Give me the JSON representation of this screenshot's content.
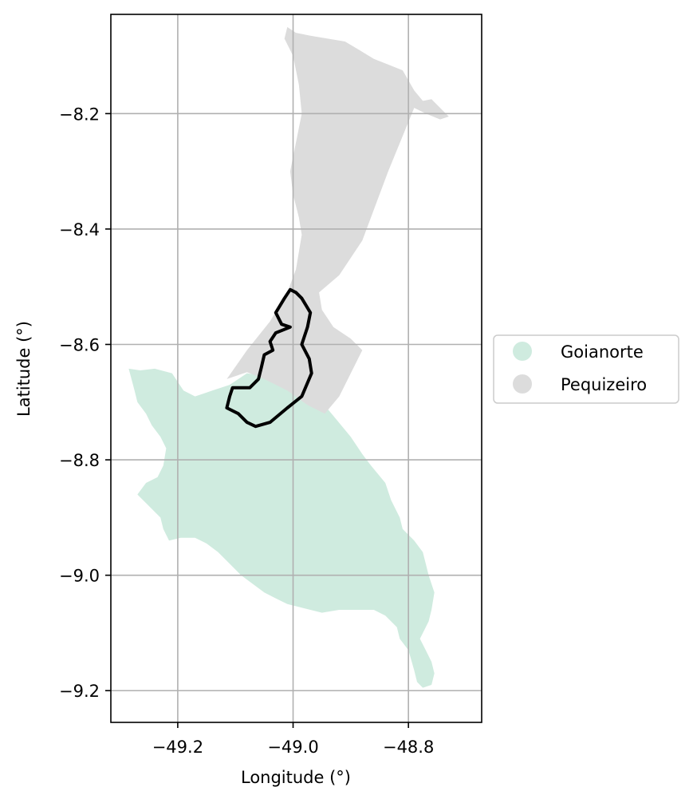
{
  "chart_data": {
    "type": "map",
    "xlabel": "Longitude (°)",
    "ylabel": "Latitude (°)",
    "xlim": [
      -49.316,
      -48.673
    ],
    "ylim": [
      -9.255,
      -8.028
    ],
    "grid": true,
    "x_ticks": [
      {
        "value": -49.2,
        "label": "−49.2"
      },
      {
        "value": -49.0,
        "label": "−49.0"
      },
      {
        "value": -48.8,
        "label": "−48.8"
      }
    ],
    "y_ticks": [
      {
        "value": -8.2,
        "label": "−8.2"
      },
      {
        "value": -8.4,
        "label": "−8.4"
      },
      {
        "value": -8.6,
        "label": "−8.6"
      },
      {
        "value": -8.8,
        "label": "−8.8"
      },
      {
        "value": -9.0,
        "label": "−9.0"
      },
      {
        "value": -9.2,
        "label": "−9.2"
      }
    ],
    "legend_position": "right",
    "regions": [
      {
        "name": "Goianorte",
        "color": "#cfebdf",
        "coords": [
          [
            -49.285,
            -8.642
          ],
          [
            -49.265,
            -8.645
          ],
          [
            -49.24,
            -8.642
          ],
          [
            -49.21,
            -8.65
          ],
          [
            -49.19,
            -8.68
          ],
          [
            -49.17,
            -8.69
          ],
          [
            -49.14,
            -8.68
          ],
          [
            -49.11,
            -8.67
          ],
          [
            -49.08,
            -8.65
          ],
          [
            -49.05,
            -8.655
          ],
          [
            -49.02,
            -8.67
          ],
          [
            -49.0,
            -8.68
          ],
          [
            -48.975,
            -8.69
          ],
          [
            -48.95,
            -8.7
          ],
          [
            -48.925,
            -8.73
          ],
          [
            -48.9,
            -8.76
          ],
          [
            -48.88,
            -8.79
          ],
          [
            -48.865,
            -8.81
          ],
          [
            -48.84,
            -8.84
          ],
          [
            -48.83,
            -8.87
          ],
          [
            -48.815,
            -8.9
          ],
          [
            -48.81,
            -8.92
          ],
          [
            -48.79,
            -8.94
          ],
          [
            -48.775,
            -8.96
          ],
          [
            -48.77,
            -8.98
          ],
          [
            -48.765,
            -9.0
          ],
          [
            -48.755,
            -9.03
          ],
          [
            -48.76,
            -9.06
          ],
          [
            -48.765,
            -9.08
          ],
          [
            -48.78,
            -9.11
          ],
          [
            -48.77,
            -9.13
          ],
          [
            -48.76,
            -9.15
          ],
          [
            -48.755,
            -9.17
          ],
          [
            -48.76,
            -9.19
          ],
          [
            -48.775,
            -9.195
          ],
          [
            -48.785,
            -9.185
          ],
          [
            -48.79,
            -9.165
          ],
          [
            -48.8,
            -9.13
          ],
          [
            -48.815,
            -9.11
          ],
          [
            -48.82,
            -9.09
          ],
          [
            -48.84,
            -9.07
          ],
          [
            -48.86,
            -9.06
          ],
          [
            -48.89,
            -9.06
          ],
          [
            -48.92,
            -9.06
          ],
          [
            -48.95,
            -9.065
          ],
          [
            -48.97,
            -9.06
          ],
          [
            -48.99,
            -9.055
          ],
          [
            -49.01,
            -9.05
          ],
          [
            -49.03,
            -9.04
          ],
          [
            -49.05,
            -9.03
          ],
          [
            -49.07,
            -9.015
          ],
          [
            -49.09,
            -9.0
          ],
          [
            -49.11,
            -8.98
          ],
          [
            -49.13,
            -8.96
          ],
          [
            -49.15,
            -8.945
          ],
          [
            -49.17,
            -8.935
          ],
          [
            -49.195,
            -8.935
          ],
          [
            -49.215,
            -8.94
          ],
          [
            -49.225,
            -8.92
          ],
          [
            -49.23,
            -8.9
          ],
          [
            -49.25,
            -8.88
          ],
          [
            -49.27,
            -8.86
          ],
          [
            -49.255,
            -8.84
          ],
          [
            -49.235,
            -8.83
          ],
          [
            -49.225,
            -8.81
          ],
          [
            -49.22,
            -8.78
          ],
          [
            -49.23,
            -8.76
          ],
          [
            -49.245,
            -8.74
          ],
          [
            -49.255,
            -8.72
          ],
          [
            -49.27,
            -8.7
          ],
          [
            -49.275,
            -8.68
          ]
        ]
      },
      {
        "name": "Pequizeiro",
        "color": "#dcdcdc",
        "coords": [
          [
            -49.01,
            -8.05
          ],
          [
            -48.995,
            -8.06
          ],
          [
            -48.97,
            -8.065
          ],
          [
            -48.94,
            -8.07
          ],
          [
            -48.91,
            -8.075
          ],
          [
            -48.885,
            -8.09
          ],
          [
            -48.86,
            -8.105
          ],
          [
            -48.835,
            -8.115
          ],
          [
            -48.81,
            -8.125
          ],
          [
            -48.79,
            -8.16
          ],
          [
            -48.775,
            -8.178
          ],
          [
            -48.76,
            -8.175
          ],
          [
            -48.745,
            -8.19
          ],
          [
            -48.73,
            -8.205
          ],
          [
            -48.745,
            -8.21
          ],
          [
            -48.77,
            -8.2
          ],
          [
            -48.79,
            -8.19
          ],
          [
            -48.835,
            -8.3
          ],
          [
            -48.88,
            -8.42
          ],
          [
            -48.92,
            -8.48
          ],
          [
            -48.955,
            -8.51
          ],
          [
            -48.95,
            -8.54
          ],
          [
            -48.93,
            -8.57
          ],
          [
            -48.9,
            -8.59
          ],
          [
            -48.88,
            -8.61
          ],
          [
            -48.92,
            -8.69
          ],
          [
            -48.945,
            -8.72
          ],
          [
            -48.975,
            -8.705
          ],
          [
            -49.01,
            -8.68
          ],
          [
            -49.05,
            -8.66
          ],
          [
            -49.08,
            -8.648
          ],
          [
            -49.115,
            -8.66
          ],
          [
            -49.08,
            -8.61
          ],
          [
            -49.04,
            -8.56
          ],
          [
            -49.01,
            -8.51
          ],
          [
            -48.995,
            -8.47
          ],
          [
            -48.985,
            -8.41
          ],
          [
            -48.99,
            -8.38
          ],
          [
            -49.0,
            -8.34
          ],
          [
            -49.005,
            -8.3
          ],
          [
            -48.995,
            -8.25
          ],
          [
            -48.985,
            -8.2
          ],
          [
            -48.99,
            -8.15
          ],
          [
            -49.0,
            -8.1
          ],
          [
            -49.015,
            -8.07
          ]
        ]
      }
    ],
    "outline": {
      "color": "#000000",
      "coords": [
        [
          -49.005,
          -8.505
        ],
        [
          -49.015,
          -8.52
        ],
        [
          -49.03,
          -8.545
        ],
        [
          -49.02,
          -8.565
        ],
        [
          -49.005,
          -8.57
        ],
        [
          -49.03,
          -8.58
        ],
        [
          -49.04,
          -8.595
        ],
        [
          -49.035,
          -8.61
        ],
        [
          -49.05,
          -8.618
        ],
        [
          -49.055,
          -8.64
        ],
        [
          -49.06,
          -8.66
        ],
        [
          -49.075,
          -8.675
        ],
        [
          -49.105,
          -8.675
        ],
        [
          -49.11,
          -8.69
        ],
        [
          -49.115,
          -8.71
        ],
        [
          -49.095,
          -8.72
        ],
        [
          -49.08,
          -8.735
        ],
        [
          -49.065,
          -8.742
        ],
        [
          -49.04,
          -8.735
        ],
        [
          -49.01,
          -8.71
        ],
        [
          -48.985,
          -8.69
        ],
        [
          -48.968,
          -8.65
        ],
        [
          -48.972,
          -8.625
        ],
        [
          -48.985,
          -8.6
        ],
        [
          -48.975,
          -8.57
        ],
        [
          -48.97,
          -8.545
        ],
        [
          -48.985,
          -8.52
        ],
        [
          -48.995,
          -8.51
        ]
      ]
    }
  }
}
